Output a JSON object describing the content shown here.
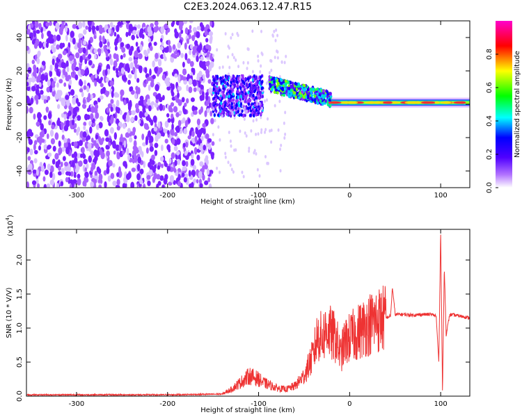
{
  "title": "C2E3.2024.063.12.47.R15",
  "chart_data": [
    {
      "type": "heatmap",
      "xlabel": "Height of straight line (km)",
      "ylabel": "Frequency (Hz)",
      "xlim": [
        -355,
        132
      ],
      "ylim": [
        -50,
        50
      ],
      "xticks": [
        -300,
        -200,
        -100,
        0,
        100
      ],
      "yticks": [
        -40,
        -20,
        0,
        20,
        40
      ],
      "colorbar": {
        "label": "Normalized spectral amplitude",
        "range": [
          0,
          1
        ],
        "ticks": [
          "0.0",
          "0.2",
          "0.4",
          "0.6",
          "0.8"
        ],
        "colors": [
          "#ffffff",
          "#9b30ff",
          "#0000ff",
          "#00ffff",
          "#00ff00",
          "#ffff00",
          "#ff0000",
          "#ff00cc"
        ]
      },
      "regions": [
        {
          "x_range": [
            -355,
            -150
          ],
          "pattern": "broadband noise",
          "amplitude": 0.15
        },
        {
          "x_range": [
            -150,
            -95
          ],
          "freq_center": 5,
          "freq_width": 12,
          "amplitude": 0.3
        },
        {
          "x_range": [
            -88,
            -20
          ],
          "freq_center_start": 12,
          "freq_center_end": 3,
          "amplitude": 0.5
        },
        {
          "x_range": [
            -20,
            132
          ],
          "freq_center": 1,
          "amplitude": 0.85
        }
      ]
    },
    {
      "type": "line",
      "xlabel": "Height of straight line (km)",
      "ylabel": "SNR (10 * V/V)",
      "scale_label": "(x10",
      "scale_exp": "4",
      "scale_close": ")",
      "xlim": [
        -355,
        132
      ],
      "ylim": [
        0,
        2.45
      ],
      "xticks": [
        -300,
        -200,
        -100,
        0,
        100
      ],
      "yticks": [
        "0.0",
        "0.5",
        "1.0",
        "1.5",
        "2.0"
      ],
      "color": "#ee3333",
      "series": [
        {
          "x": [
            -355,
            -300,
            -200,
            -140,
            -130,
            -120,
            -110,
            -100,
            -95,
            -80,
            -70,
            -60,
            -50,
            -45,
            -40,
            -35,
            -30,
            -25,
            -20,
            -15,
            -10,
            -5,
            0,
            10,
            20,
            30,
            40,
            45,
            47,
            50,
            60,
            70,
            80,
            90,
            95,
            98,
            100,
            102,
            104,
            106,
            110,
            120,
            132
          ],
          "y": [
            0.02,
            0.02,
            0.02,
            0.03,
            0.1,
            0.2,
            0.3,
            0.25,
            0.2,
            0.12,
            0.1,
            0.15,
            0.3,
            0.45,
            0.6,
            0.9,
            0.85,
            1.0,
            0.9,
            0.85,
            0.6,
            0.8,
            0.85,
            0.95,
            1.05,
            1.12,
            1.15,
            1.18,
            1.6,
            1.2,
            1.2,
            1.19,
            1.2,
            1.2,
            1.18,
            0.5,
            2.45,
            0.05,
            1.9,
            0.9,
            1.2,
            1.18,
            1.15
          ]
        }
      ]
    }
  ]
}
